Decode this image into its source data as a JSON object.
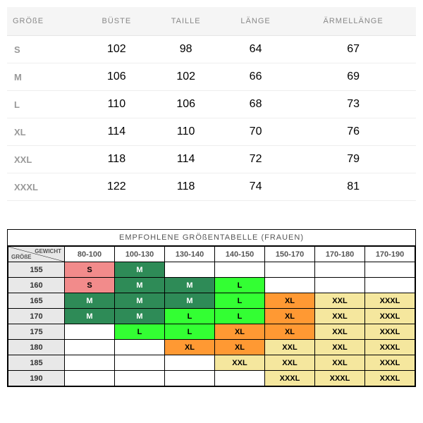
{
  "table1": {
    "headers": [
      "GRÖßE",
      "BÜSTE",
      "TAILLE",
      "LÄNGE",
      "ÄRMELLÄNGE"
    ],
    "rows": [
      {
        "size": "S",
        "bust": 102,
        "waist": 98,
        "length": 64,
        "sleeve": 67
      },
      {
        "size": "M",
        "bust": 106,
        "waist": 102,
        "length": 66,
        "sleeve": 69
      },
      {
        "size": "L",
        "bust": 110,
        "waist": 106,
        "length": 68,
        "sleeve": 73
      },
      {
        "size": "XL",
        "bust": 114,
        "waist": 110,
        "length": 70,
        "sleeve": 76
      },
      {
        "size": "XXL",
        "bust": 118,
        "waist": 114,
        "length": 72,
        "sleeve": 79
      },
      {
        "size": "XXXL",
        "bust": 122,
        "waist": 118,
        "length": 74,
        "sleeve": 81
      }
    ]
  },
  "table2": {
    "title": "EMPFOHLENE GRÖßENTABELLE (FRAUEN)",
    "corner_weight": "GEWICHT",
    "corner_size": "GRÖßE",
    "weight_cols": [
      "80-100",
      "100-130",
      "130-140",
      "140-150",
      "150-170",
      "170-180",
      "170-190"
    ],
    "heights": [
      "155",
      "160",
      "165",
      "170",
      "175",
      "180",
      "185",
      "190"
    ],
    "colors": {
      "pink": "#f28b8b",
      "dgreen": "#2e8b57",
      "lgreen": "#33ff33",
      "orange": "#ff9933",
      "yellow": "#f5e79e",
      "grey": "#e8e8e8",
      "empty": "#ffffff"
    },
    "grid": [
      [
        {
          "v": "S",
          "c": "pink"
        },
        {
          "v": "M",
          "c": "dgreen"
        },
        {
          "v": "",
          "c": "empty"
        },
        {
          "v": "",
          "c": "empty"
        },
        {
          "v": "",
          "c": "empty"
        },
        {
          "v": "",
          "c": "empty"
        },
        {
          "v": "",
          "c": "empty"
        }
      ],
      [
        {
          "v": "S",
          "c": "pink"
        },
        {
          "v": "M",
          "c": "dgreen"
        },
        {
          "v": "M",
          "c": "dgreen"
        },
        {
          "v": "L",
          "c": "lgreen"
        },
        {
          "v": "",
          "c": "empty"
        },
        {
          "v": "",
          "c": "empty"
        },
        {
          "v": "",
          "c": "empty"
        }
      ],
      [
        {
          "v": "M",
          "c": "dgreen"
        },
        {
          "v": "M",
          "c": "dgreen"
        },
        {
          "v": "M",
          "c": "dgreen"
        },
        {
          "v": "L",
          "c": "lgreen"
        },
        {
          "v": "XL",
          "c": "orange"
        },
        {
          "v": "XXL",
          "c": "yellow"
        },
        {
          "v": "XXXL",
          "c": "yellow"
        }
      ],
      [
        {
          "v": "M",
          "c": "dgreen"
        },
        {
          "v": "M",
          "c": "dgreen"
        },
        {
          "v": "L",
          "c": "lgreen"
        },
        {
          "v": "L",
          "c": "lgreen"
        },
        {
          "v": "XL",
          "c": "orange"
        },
        {
          "v": "XXL",
          "c": "yellow"
        },
        {
          "v": "XXXL",
          "c": "yellow"
        }
      ],
      [
        {
          "v": "",
          "c": "empty"
        },
        {
          "v": "L",
          "c": "lgreen"
        },
        {
          "v": "L",
          "c": "lgreen"
        },
        {
          "v": "XL",
          "c": "orange"
        },
        {
          "v": "XL",
          "c": "orange"
        },
        {
          "v": "XXL",
          "c": "yellow"
        },
        {
          "v": "XXXL",
          "c": "yellow"
        }
      ],
      [
        {
          "v": "",
          "c": "empty"
        },
        {
          "v": "",
          "c": "empty"
        },
        {
          "v": "XL",
          "c": "orange"
        },
        {
          "v": "XL",
          "c": "orange"
        },
        {
          "v": "XXL",
          "c": "yellow"
        },
        {
          "v": "XXL",
          "c": "yellow"
        },
        {
          "v": "XXXL",
          "c": "yellow"
        }
      ],
      [
        {
          "v": "",
          "c": "empty"
        },
        {
          "v": "",
          "c": "empty"
        },
        {
          "v": "",
          "c": "empty"
        },
        {
          "v": "XXL",
          "c": "yellow"
        },
        {
          "v": "XXL",
          "c": "yellow"
        },
        {
          "v": "XXL",
          "c": "yellow"
        },
        {
          "v": "XXXL",
          "c": "yellow"
        }
      ],
      [
        {
          "v": "",
          "c": "empty"
        },
        {
          "v": "",
          "c": "empty"
        },
        {
          "v": "",
          "c": "empty"
        },
        {
          "v": "",
          "c": "empty"
        },
        {
          "v": "XXXL",
          "c": "yellow"
        },
        {
          "v": "XXXL",
          "c": "yellow"
        },
        {
          "v": "XXXL",
          "c": "yellow"
        }
      ]
    ]
  }
}
